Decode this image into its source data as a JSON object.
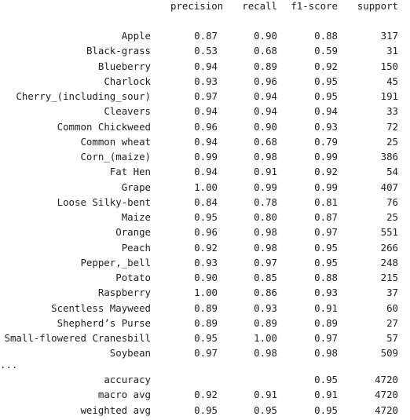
{
  "report": {
    "headers": {
      "precision": "precision",
      "recall": "recall",
      "f1": "f1-score",
      "support": "support"
    },
    "rows": [
      {
        "label": "Apple",
        "precision": "0.87",
        "recall": "0.90",
        "f1": "0.88",
        "support": "317"
      },
      {
        "label": "Black-grass",
        "precision": "0.53",
        "recall": "0.68",
        "f1": "0.59",
        "support": "31"
      },
      {
        "label": "Blueberry",
        "precision": "0.94",
        "recall": "0.89",
        "f1": "0.92",
        "support": "150"
      },
      {
        "label": "Charlock",
        "precision": "0.93",
        "recall": "0.96",
        "f1": "0.95",
        "support": "45"
      },
      {
        "label": "Cherry_(including_sour)",
        "precision": "0.97",
        "recall": "0.94",
        "f1": "0.95",
        "support": "191"
      },
      {
        "label": "Cleavers",
        "precision": "0.94",
        "recall": "0.94",
        "f1": "0.94",
        "support": "33"
      },
      {
        "label": "Common Chickweed",
        "precision": "0.96",
        "recall": "0.90",
        "f1": "0.93",
        "support": "72"
      },
      {
        "label": "Common wheat",
        "precision": "0.94",
        "recall": "0.68",
        "f1": "0.79",
        "support": "25"
      },
      {
        "label": "Corn_(maize)",
        "precision": "0.99",
        "recall": "0.98",
        "f1": "0.99",
        "support": "386"
      },
      {
        "label": "Fat Hen",
        "precision": "0.94",
        "recall": "0.91",
        "f1": "0.92",
        "support": "54"
      },
      {
        "label": "Grape",
        "precision": "1.00",
        "recall": "0.99",
        "f1": "0.99",
        "support": "407"
      },
      {
        "label": "Loose Silky-bent",
        "precision": "0.84",
        "recall": "0.78",
        "f1": "0.81",
        "support": "76"
      },
      {
        "label": "Maize",
        "precision": "0.95",
        "recall": "0.80",
        "f1": "0.87",
        "support": "25"
      },
      {
        "label": "Orange",
        "precision": "0.96",
        "recall": "0.98",
        "f1": "0.97",
        "support": "551"
      },
      {
        "label": "Peach",
        "precision": "0.92",
        "recall": "0.98",
        "f1": "0.95",
        "support": "266"
      },
      {
        "label": "Pepper,_bell",
        "precision": "0.93",
        "recall": "0.97",
        "f1": "0.95",
        "support": "248"
      },
      {
        "label": "Potato",
        "precision": "0.90",
        "recall": "0.85",
        "f1": "0.88",
        "support": "215"
      },
      {
        "label": "Raspberry",
        "precision": "1.00",
        "recall": "0.86",
        "f1": "0.93",
        "support": "37"
      },
      {
        "label": "Scentless Mayweed",
        "precision": "0.89",
        "recall": "0.93",
        "f1": "0.91",
        "support": "60"
      },
      {
        "label": "Shepherd’s Purse",
        "precision": "0.89",
        "recall": "0.89",
        "f1": "0.89",
        "support": "27"
      },
      {
        "label": "Small-flowered Cranesbill",
        "precision": "0.95",
        "recall": "1.00",
        "f1": "0.97",
        "support": "57"
      },
      {
        "label": "Soybean",
        "precision": "0.97",
        "recall": "0.98",
        "f1": "0.98",
        "support": "509"
      }
    ],
    "ellipsis": "...",
    "summary": [
      {
        "label": "accuracy",
        "precision": "",
        "recall": "",
        "f1": "0.95",
        "support": "4720"
      },
      {
        "label": "macro avg",
        "precision": "0.92",
        "recall": "0.91",
        "f1": "0.91",
        "support": "4720"
      },
      {
        "label": "weighted avg",
        "precision": "0.95",
        "recall": "0.95",
        "f1": "0.95",
        "support": "4720"
      }
    ]
  }
}
